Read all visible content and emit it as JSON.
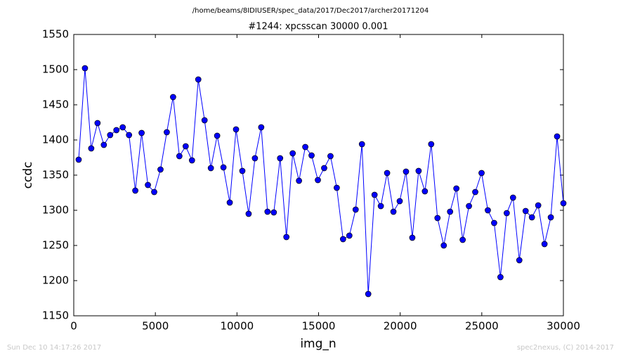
{
  "chart_data": {
    "type": "line",
    "header": "/home/beams/8IDIUSER/spec_data/2017/Dec2017/archer20171204",
    "title": "#1244: xpcsscan 30000 0.001",
    "xlabel": "img_n",
    "ylabel": "ccdc",
    "footer_left": "Sun Dec 10 14:17:26 2017",
    "footer_right": "spec2nexus, (C) 2014-2017",
    "x": [
      300,
      686,
      1071,
      1457,
      1843,
      2229,
      2614,
      3000,
      3386,
      3771,
      4157,
      4543,
      4929,
      5314,
      5700,
      6086,
      6471,
      6857,
      7243,
      7629,
      8014,
      8400,
      8786,
      9171,
      9557,
      9943,
      10329,
      10714,
      11100,
      11486,
      11871,
      12257,
      12643,
      13029,
      13414,
      13800,
      14186,
      14571,
      14957,
      15343,
      15729,
      16114,
      16500,
      16886,
      17271,
      17657,
      18043,
      18429,
      18814,
      19200,
      19586,
      19971,
      20357,
      20743,
      21129,
      21514,
      21900,
      22286,
      22671,
      23057,
      23443,
      23829,
      24214,
      24600,
      24986,
      25371,
      25757,
      26143,
      26529,
      26914,
      27300,
      27686,
      28071,
      28457,
      28843,
      29229,
      29614,
      30000
    ],
    "series": [
      {
        "name": "ccdc",
        "color": "#0000ff",
        "values": [
          1372,
          1502,
          1388,
          1424,
          1393,
          1407,
          1414,
          1418,
          1407,
          1328,
          1410,
          1336,
          1326,
          1358,
          1411,
          1461,
          1377,
          1391,
          1371,
          1486,
          1428,
          1360,
          1406,
          1361,
          1311,
          1415,
          1356,
          1295,
          1374,
          1418,
          1298,
          1297,
          1374,
          1262,
          1381,
          1342,
          1390,
          1378,
          1343,
          1360,
          1377,
          1332,
          1259,
          1264,
          1301,
          1394,
          1181,
          1322,
          1306,
          1353,
          1298,
          1313,
          1355,
          1261,
          1356,
          1327,
          1394,
          1289,
          1250,
          1298,
          1331,
          1258,
          1306,
          1326,
          1353,
          1300,
          1282,
          1205,
          1296,
          1318,
          1229,
          1299,
          1290,
          1307,
          1252,
          1290,
          1405,
          1310
        ]
      }
    ],
    "xlim": [
      0,
      30000
    ],
    "ylim": [
      1150,
      1550
    ],
    "xticks": [
      0,
      5000,
      10000,
      15000,
      20000,
      25000,
      30000
    ],
    "yticks": [
      1150,
      1200,
      1250,
      1300,
      1350,
      1400,
      1450,
      1500,
      1550
    ],
    "grid": false
  }
}
